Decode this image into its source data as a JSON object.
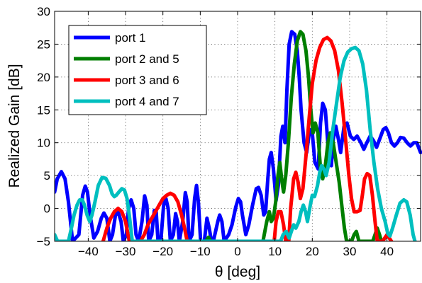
{
  "chart_data": {
    "type": "line",
    "title": "",
    "xlabel": "θ [deg]",
    "ylabel": "Realized Gain [dB]",
    "xlim": [
      -49,
      49
    ],
    "ylim": [
      -5,
      30
    ],
    "xticks": [
      -40,
      -30,
      -20,
      -10,
      0,
      10,
      20,
      30,
      40
    ],
    "yticks": [
      -5,
      0,
      5,
      10,
      15,
      20,
      25,
      30
    ],
    "xtick_labels": [
      "−40",
      "−30",
      "−20",
      "−10",
      "0",
      "10",
      "20",
      "30",
      "40"
    ],
    "ytick_labels": [
      "−5",
      "0",
      "5",
      "10",
      "15",
      "20",
      "25",
      "30"
    ],
    "grid": true,
    "legend_position": "top-left",
    "series": [
      {
        "name": "port 1",
        "color": "#0000ff",
        "points": [
          [
            -49,
            2.5
          ],
          [
            -48.3,
            4.5
          ],
          [
            -47.2,
            5.6
          ],
          [
            -46.2,
            4.5
          ],
          [
            -45.3,
            1
          ],
          [
            -44.2,
            -5
          ],
          [
            -42.5,
            -4
          ],
          [
            -41.5,
            2
          ],
          [
            -40.8,
            3.4
          ],
          [
            -40.2,
            2.5
          ],
          [
            -39.5,
            -1
          ],
          [
            -38.5,
            -4.5
          ],
          [
            -37.5,
            -3.5
          ],
          [
            -36.5,
            -1.5
          ],
          [
            -35.8,
            -0.7
          ],
          [
            -35,
            -1.5
          ],
          [
            -34.2,
            -5
          ],
          [
            -33.5,
            -4
          ],
          [
            -32.7,
            -1
          ],
          [
            -32,
            -0.5
          ],
          [
            -31.2,
            -2
          ],
          [
            -30.6,
            -5
          ],
          [
            -29.8,
            -4
          ],
          [
            -29.2,
            0
          ],
          [
            -28.5,
            1.3
          ],
          [
            -27.8,
            0
          ],
          [
            -27.2,
            -4
          ],
          [
            -26.5,
            -5
          ],
          [
            -25.6,
            -2
          ],
          [
            -24.9,
            1.9
          ],
          [
            -24.3,
            0.5
          ],
          [
            -23.8,
            -5
          ],
          [
            -23,
            -4
          ],
          [
            -22.3,
            -0.3
          ],
          [
            -21.8,
            -0.5
          ],
          [
            -21.3,
            -5
          ],
          [
            -20.5,
            -4.5
          ],
          [
            -19.8,
            0.5
          ],
          [
            -19.2,
            1.5
          ],
          [
            -18.6,
            0
          ],
          [
            -18,
            -5
          ],
          [
            -17.2,
            -4
          ],
          [
            -16.6,
            -0.8
          ],
          [
            -16.1,
            -2
          ],
          [
            -15.6,
            -5
          ],
          [
            -14.7,
            -2
          ],
          [
            -14,
            2.4
          ],
          [
            -13.5,
            1
          ],
          [
            -13,
            -5
          ],
          [
            -12.2,
            -4
          ],
          [
            -11.5,
            1.5
          ],
          [
            -11,
            3.5
          ],
          [
            -10.5,
            1
          ],
          [
            -9.9,
            -5
          ],
          [
            -8.9,
            -5
          ],
          [
            -8.2,
            -1.5
          ],
          [
            -7.6,
            -3
          ],
          [
            -7,
            -5
          ],
          [
            -6.5,
            -5
          ],
          [
            -5.3,
            -2
          ],
          [
            -4.8,
            -1
          ],
          [
            -4.2,
            -2
          ],
          [
            -3.6,
            -5
          ],
          [
            -2.4,
            -4
          ],
          [
            -1.5,
            -2.5
          ],
          [
            -0.5,
            0.2
          ],
          [
            0.2,
            1.5
          ],
          [
            0.8,
            1
          ],
          [
            1.3,
            -1
          ],
          [
            2.2,
            -4
          ],
          [
            3,
            -2.5
          ],
          [
            4,
            0.5
          ],
          [
            5,
            3
          ],
          [
            5.6,
            3.2
          ],
          [
            6.3,
            2
          ],
          [
            7,
            -1
          ],
          [
            7.5,
            -0.5
          ],
          [
            8.1,
            4.5
          ],
          [
            8.5,
            7.5
          ],
          [
            9,
            8.5
          ],
          [
            9.6,
            6
          ],
          [
            10.3,
            1.2
          ],
          [
            10.9,
            3.5
          ],
          [
            11.6,
            11
          ],
          [
            12.1,
            12.5
          ],
          [
            12.7,
            10
          ],
          [
            13.2,
            18
          ],
          [
            13.8,
            25
          ],
          [
            14.5,
            26.9
          ],
          [
            15.3,
            26.5
          ],
          [
            16,
            24
          ],
          [
            16.5,
            20
          ],
          [
            17,
            15
          ],
          [
            17.8,
            10
          ],
          [
            18.5,
            8.5
          ],
          [
            19.3,
            12
          ],
          [
            20,
            11.5
          ],
          [
            20.7,
            7
          ],
          [
            21.6,
            6
          ],
          [
            22.2,
            13
          ],
          [
            22.8,
            16
          ],
          [
            23.5,
            15
          ],
          [
            24.3,
            9
          ],
          [
            25.1,
            6.5
          ],
          [
            25.6,
            10.5
          ],
          [
            26.3,
            12.5
          ],
          [
            27,
            10.5
          ],
          [
            27.6,
            8.5
          ],
          [
            28.5,
            12.5
          ],
          [
            29.3,
            13
          ],
          [
            30.2,
            11
          ],
          [
            31.1,
            10.5
          ],
          [
            32,
            11
          ],
          [
            33,
            10
          ],
          [
            33.8,
            9
          ],
          [
            34.6,
            10
          ],
          [
            35.5,
            11
          ],
          [
            36.4,
            10.3
          ],
          [
            37.2,
            9.3
          ],
          [
            38,
            10.5
          ],
          [
            39,
            12
          ],
          [
            39.7,
            12.3
          ],
          [
            40.4,
            11.5
          ],
          [
            41.2,
            10
          ],
          [
            42,
            9.5
          ],
          [
            42.8,
            10
          ],
          [
            43.6,
            10.8
          ],
          [
            44.5,
            10.7
          ],
          [
            45.4,
            10
          ],
          [
            46.3,
            9.5
          ],
          [
            47.2,
            10
          ],
          [
            48,
            10
          ],
          [
            49,
            8.5
          ]
        ]
      },
      {
        "name": "port 2 and 5",
        "color": "#007f00",
        "points": [
          [
            -8.5,
            -5
          ],
          [
            -7.8,
            -4.4
          ],
          [
            -7.2,
            -5
          ],
          [
            6.8,
            -5
          ],
          [
            7.8,
            -2
          ],
          [
            8.5,
            -0.5
          ],
          [
            9,
            -2
          ],
          [
            9.6,
            -1.5
          ],
          [
            10.2,
            1
          ],
          [
            10.8,
            5
          ],
          [
            11.3,
            7
          ],
          [
            11.9,
            4
          ],
          [
            12.3,
            2.5
          ],
          [
            12.9,
            5
          ],
          [
            13.6,
            10
          ],
          [
            14.4,
            17
          ],
          [
            15.2,
            22
          ],
          [
            16,
            25.5
          ],
          [
            16.8,
            26.9
          ],
          [
            17.5,
            26.5
          ],
          [
            18.3,
            24
          ],
          [
            19,
            20
          ],
          [
            19.6,
            15
          ],
          [
            20.2,
            11.5
          ],
          [
            20.8,
            13
          ],
          [
            21.5,
            11.5
          ],
          [
            22.2,
            6
          ],
          [
            22.8,
            4.5
          ],
          [
            23.5,
            6.5
          ],
          [
            24.2,
            10
          ],
          [
            24.8,
            11.5
          ],
          [
            25.6,
            10
          ],
          [
            26.4,
            7
          ],
          [
            27.2,
            4
          ],
          [
            28,
            0
          ],
          [
            28.6,
            -3
          ],
          [
            29.2,
            -5
          ],
          [
            30.5,
            -5
          ],
          [
            31.2,
            -4
          ],
          [
            31.8,
            -3.5
          ],
          [
            32.5,
            -5
          ],
          [
            36.2,
            -5
          ],
          [
            36.8,
            -4
          ],
          [
            37.4,
            -3
          ],
          [
            38,
            -4
          ],
          [
            38.5,
            -5
          ]
        ]
      },
      {
        "name": "port 3 and 6",
        "color": "#ff0000",
        "points": [
          [
            -36,
            -5
          ],
          [
            -35,
            -3
          ],
          [
            -34,
            -1.5
          ],
          [
            -33,
            -0.5
          ],
          [
            -32,
            0
          ],
          [
            -31,
            -0.5
          ],
          [
            -30,
            -2
          ],
          [
            -29,
            -5
          ],
          [
            -26,
            -5
          ],
          [
            -25,
            -4
          ],
          [
            -24,
            -2.5
          ],
          [
            -23,
            -1.5
          ],
          [
            -22,
            -0.5
          ],
          [
            -21,
            0.5
          ],
          [
            -20,
            1.5
          ],
          [
            -19,
            2
          ],
          [
            -18,
            2.3
          ],
          [
            -17,
            2
          ],
          [
            -16,
            1
          ],
          [
            -15,
            -1
          ],
          [
            -14.2,
            -3
          ],
          [
            -13.5,
            -5
          ],
          [
            9.8,
            -5
          ],
          [
            10.3,
            -2
          ],
          [
            10.9,
            -0.5
          ],
          [
            11.6,
            -0.5
          ],
          [
            12.3,
            -2.5
          ],
          [
            12.9,
            -5
          ],
          [
            13.7,
            -5
          ],
          [
            14.2,
            0
          ],
          [
            15,
            4.5
          ],
          [
            15.6,
            5.5
          ],
          [
            16.2,
            4
          ],
          [
            16.8,
            1.5
          ],
          [
            17.5,
            3
          ],
          [
            18.3,
            8
          ],
          [
            19.2,
            14
          ],
          [
            20,
            19
          ],
          [
            21,
            22.5
          ],
          [
            22,
            24.5
          ],
          [
            23,
            25.7
          ],
          [
            24,
            26
          ],
          [
            25,
            25.5
          ],
          [
            26,
            24
          ],
          [
            27,
            21
          ],
          [
            28,
            16
          ],
          [
            29,
            10
          ],
          [
            29.8,
            5
          ],
          [
            30.5,
            1.5
          ],
          [
            31.2,
            -0.5
          ],
          [
            32,
            -0.5
          ],
          [
            32.8,
            -0.3
          ],
          [
            33.4,
            2
          ],
          [
            34,
            4.5
          ],
          [
            34.7,
            5.3
          ],
          [
            35.4,
            5
          ],
          [
            36.1,
            2
          ],
          [
            36.8,
            -2
          ],
          [
            37.4,
            -5
          ],
          [
            38.8,
            -5
          ],
          [
            39.4,
            -4.5
          ],
          [
            40,
            -4
          ],
          [
            40.6,
            -4.5
          ],
          [
            41.2,
            -5
          ]
        ]
      },
      {
        "name": "port 4 and 7",
        "color": "#00bfbf",
        "points": [
          [
            -49,
            -4
          ],
          [
            -48.2,
            -5
          ],
          [
            -45.3,
            -5
          ],
          [
            -44.5,
            -3
          ],
          [
            -43.8,
            -1
          ],
          [
            -43,
            0.5
          ],
          [
            -42.3,
            1.3
          ],
          [
            -41.6,
            1.3
          ],
          [
            -41,
            0.5
          ],
          [
            -40.3,
            -1
          ],
          [
            -39.6,
            -2
          ],
          [
            -39,
            -1
          ],
          [
            -38.2,
            1
          ],
          [
            -37.3,
            3.5
          ],
          [
            -36.3,
            4.7
          ],
          [
            -35.3,
            4.6
          ],
          [
            -34.3,
            3.5
          ],
          [
            -33.6,
            2.2
          ],
          [
            -33,
            1.8
          ],
          [
            -32.5,
            2
          ],
          [
            -31.8,
            2.5
          ],
          [
            -31,
            3
          ],
          [
            -30.3,
            2.8
          ],
          [
            -29.6,
            1.5
          ],
          [
            -28.9,
            -1.5
          ],
          [
            -28.2,
            -5
          ],
          [
            11.5,
            -5
          ],
          [
            12.2,
            -4
          ],
          [
            13,
            -3.5
          ],
          [
            13.8,
            -4.5
          ],
          [
            14.4,
            -3.5
          ],
          [
            15,
            -2.5
          ],
          [
            15.6,
            -3
          ],
          [
            16.4,
            -2
          ],
          [
            17,
            -0.5
          ],
          [
            17.6,
            0.5
          ],
          [
            18.2,
            -0.5
          ],
          [
            18.7,
            -2
          ],
          [
            19.3,
            0
          ],
          [
            20,
            2
          ],
          [
            20.6,
            1.8
          ],
          [
            21.4,
            3.5
          ],
          [
            22,
            5.5
          ],
          [
            22.5,
            6.5
          ],
          [
            23.1,
            6
          ],
          [
            23.7,
            5
          ],
          [
            24.5,
            7
          ],
          [
            25.5,
            12
          ],
          [
            26.5,
            16
          ],
          [
            27.5,
            20
          ],
          [
            28.5,
            22.5
          ],
          [
            29.5,
            23.8
          ],
          [
            30.5,
            24.3
          ],
          [
            31.5,
            24.5
          ],
          [
            32.5,
            24
          ],
          [
            33.5,
            22
          ],
          [
            34.5,
            18
          ],
          [
            35.5,
            12
          ],
          [
            36.5,
            7
          ],
          [
            37.5,
            3
          ],
          [
            38.5,
            0
          ],
          [
            39.5,
            -2
          ],
          [
            40.2,
            -3.8
          ],
          [
            40.8,
            -4.2
          ],
          [
            41.5,
            -3
          ],
          [
            42.5,
            -1
          ],
          [
            43.5,
            0.8
          ],
          [
            44.5,
            1.3
          ],
          [
            45.3,
            1
          ],
          [
            46.2,
            -1
          ],
          [
            47,
            -4
          ],
          [
            47.5,
            -5
          ]
        ]
      }
    ]
  }
}
